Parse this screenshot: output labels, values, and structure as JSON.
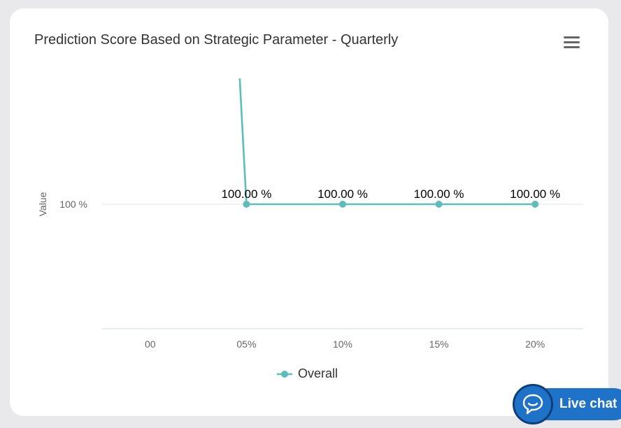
{
  "chart_data": {
    "type": "line",
    "title": "Prediction Score Based on Strategic Parameter - Quarterly",
    "ylabel": "Value",
    "xlabel": "",
    "categories": [
      "00",
      "05%",
      "10%",
      "15%",
      "20%"
    ],
    "y_ticks": [
      "100 %"
    ],
    "series": [
      {
        "name": "Overall",
        "color": "#5cbdb9",
        "values": [
          null,
          100,
          100,
          100,
          100
        ],
        "data_labels": [
          "",
          "100.00 %",
          "100.00 %",
          "100.00 %",
          "100.00 %"
        ]
      }
    ],
    "legend_position": "bottom-center",
    "grid": true
  },
  "widgets": {
    "menu_icon": "hamburger-icon",
    "live_chat_label": "Live chat",
    "live_chat_icon": "chat-bubble-icon",
    "live_chat_color": "#1e72c8"
  }
}
